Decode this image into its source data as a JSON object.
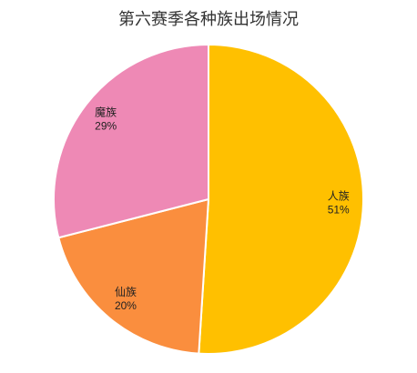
{
  "chart_data": {
    "type": "pie",
    "title": "第六赛季各种族出场情况",
    "categories": [
      "人族",
      "仙族",
      "魔族"
    ],
    "values": [
      51,
      20,
      29
    ],
    "value_labels": [
      "51%",
      "20%",
      "29%"
    ],
    "colors": [
      "#ffc000",
      "#fa8e3e",
      "#ee89b5"
    ]
  }
}
